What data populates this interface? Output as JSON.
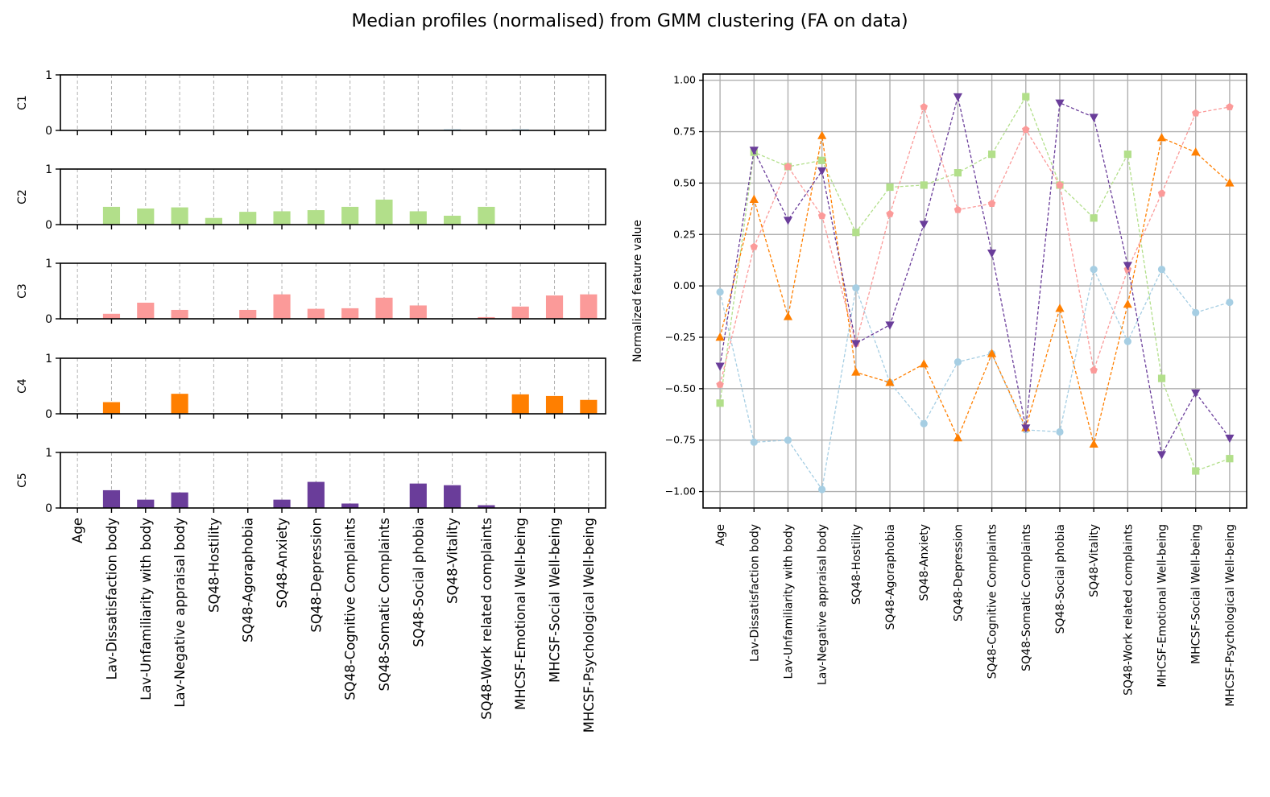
{
  "figure": {
    "title": "Median profiles (normalised) from GMM clustering (FA on data)"
  },
  "chart_data": [
    {
      "type": "bar",
      "layout": "five stacked bar panels sharing x categories",
      "categories": [
        "Age",
        "Lav-Dissatisfaction body",
        "Lav-Unfamiliarity with body",
        "Lav-Negative appraisal body",
        "SQ48-Hostility",
        "SQ48-Agoraphobia",
        "SQ48-Anxiety",
        "SQ48-Depression",
        "SQ48-Cognitive Complaints",
        "SQ48-Somatic Complaints",
        "SQ48-Social phobia",
        "SQ48-Vitality",
        "SQ48-Work related complaints",
        "MHCSF-Emotional Well-being",
        "MHCSF-Social Well-being",
        "MHCSF-Psychological Well-being"
      ],
      "ylim": [
        0,
        1
      ],
      "yticks": [
        0,
        1
      ],
      "grid": "x dashed",
      "series": [
        {
          "name": "C1",
          "color": "#a6cee3",
          "values": [
            0,
            0,
            0,
            0,
            0,
            0,
            0,
            0,
            0,
            0,
            0,
            0.02,
            0,
            0.02,
            0,
            0
          ]
        },
        {
          "name": "C2",
          "color": "#b2df8a",
          "values": [
            0,
            0.32,
            0.29,
            0.31,
            0.12,
            0.23,
            0.24,
            0.26,
            0.32,
            0.45,
            0.24,
            0.16,
            0.32,
            0,
            0,
            0
          ]
        },
        {
          "name": "C3",
          "color": "#fb9a99",
          "values": [
            0,
            0.09,
            0.29,
            0.16,
            0,
            0.16,
            0.44,
            0.18,
            0.19,
            0.38,
            0.24,
            0,
            0.03,
            0.22,
            0.42,
            0.44
          ]
        },
        {
          "name": "C4",
          "color": "#ff7f00",
          "values": [
            0,
            0.21,
            0,
            0.36,
            0,
            0,
            0,
            0,
            0,
            0,
            0,
            0,
            0,
            0.35,
            0.32,
            0.25
          ]
        },
        {
          "name": "C5",
          "color": "#6a3d9a",
          "values": [
            0,
            0.32,
            0.15,
            0.28,
            0,
            0,
            0.15,
            0.47,
            0.08,
            0,
            0.44,
            0.41,
            0.05,
            0,
            0,
            0
          ]
        }
      ]
    },
    {
      "type": "line",
      "ylabel": "Normalized feature value",
      "ylim": [
        -1.08,
        1.03
      ],
      "yticks": [
        -1.0,
        -0.75,
        -0.5,
        -0.25,
        0.0,
        0.25,
        0.5,
        0.75,
        1.0
      ],
      "ytick_labels": [
        "−1.00",
        "−0.75",
        "−0.50",
        "−0.25",
        "0.00",
        "0.25",
        "0.50",
        "0.75",
        "1.00"
      ],
      "grid": "on",
      "categories": [
        "Age",
        "Lav-Dissatisfaction body",
        "Lav-Unfamiliarity with body",
        "Lav-Negative appraisal body",
        "SQ48-Hostility",
        "SQ48-Agoraphobia",
        "SQ48-Anxiety",
        "SQ48-Depression",
        "SQ48-Cognitive Complaints",
        "SQ48-Somatic Complaints",
        "SQ48-Social phobia",
        "SQ48-Vitality",
        "SQ48-Work related complaints",
        "MHCSF-Emotional Well-being",
        "MHCSF-Social Well-being",
        "MHCSF-Psychological Well-being"
      ],
      "series": [
        {
          "name": "C1",
          "color": "#a6cee3",
          "marker": "circle",
          "values": [
            -0.03,
            -0.76,
            -0.75,
            -0.99,
            -0.01,
            -0.47,
            -0.67,
            -0.37,
            -0.33,
            -0.7,
            -0.71,
            0.08,
            -0.27,
            0.08,
            -0.13,
            -0.08
          ]
        },
        {
          "name": "C2",
          "color": "#b2df8a",
          "marker": "square",
          "values": [
            -0.57,
            0.65,
            0.58,
            0.61,
            0.26,
            0.48,
            0.49,
            0.55,
            0.64,
            0.92,
            0.49,
            0.33,
            0.64,
            -0.45,
            -0.9,
            -0.84
          ]
        },
        {
          "name": "C3",
          "color": "#fb9a99",
          "marker": "pentagon",
          "values": [
            -0.48,
            0.19,
            0.58,
            0.34,
            -0.28,
            0.35,
            0.87,
            0.37,
            0.4,
            0.76,
            0.49,
            -0.41,
            0.08,
            0.45,
            0.84,
            0.87
          ]
        },
        {
          "name": "C4",
          "color": "#ff7f00",
          "marker": "triangle-up",
          "values": [
            -0.25,
            0.42,
            -0.15,
            0.73,
            -0.42,
            -0.47,
            -0.38,
            -0.74,
            -0.33,
            -0.69,
            -0.11,
            -0.77,
            -0.09,
            0.72,
            0.65,
            0.5
          ]
        },
        {
          "name": "C5",
          "color": "#6a3d9a",
          "marker": "triangle-down",
          "values": [
            -0.39,
            0.66,
            0.32,
            0.56,
            -0.28,
            -0.19,
            0.3,
            0.92,
            0.16,
            -0.69,
            0.89,
            0.82,
            0.1,
            -0.82,
            -0.52,
            -0.74
          ]
        }
      ]
    }
  ]
}
